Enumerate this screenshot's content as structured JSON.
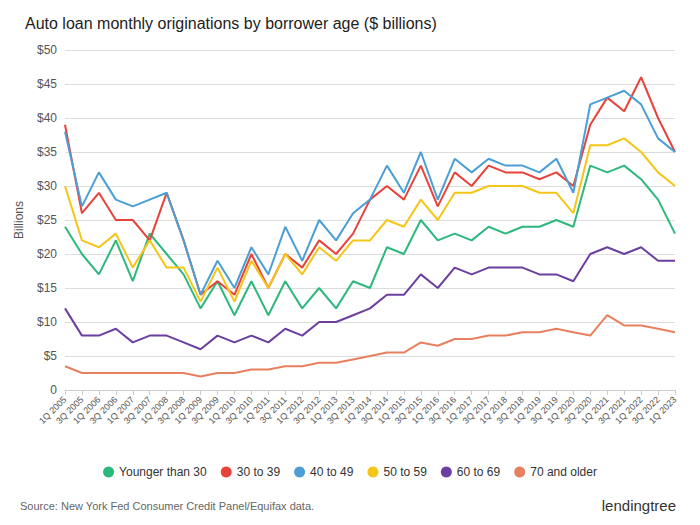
{
  "chart_data": {
    "type": "line",
    "title": "Auto loan monthly originations by borrower age ($ billions)",
    "ylabel": "Billions",
    "annotations": [
      "Source: New York Fed Consumer Credit Panel/Equifax data.",
      "lendingtree"
    ],
    "categories": [
      "1Q 2005",
      "3Q 2005",
      "1Q 2006",
      "3Q 2006",
      "1Q 2007",
      "3Q 2007",
      "1Q 2008",
      "3Q 2008",
      "1Q 2009",
      "3Q 2009",
      "1Q 2010",
      "3Q 2010",
      "1Q 2011",
      "3Q 2011",
      "1Q 2012",
      "3Q 2012",
      "1Q 2013",
      "3Q 2013",
      "1Q 2014",
      "3Q 2014",
      "1Q 2015",
      "3Q 2015",
      "1Q 2016",
      "3Q 2016",
      "1Q 2017",
      "3Q 2017",
      "1Q 2018",
      "3Q 2018",
      "1Q 2019",
      "3Q 2019",
      "1Q 2020",
      "3Q 2020",
      "1Q 2021",
      "3Q 2021",
      "1Q 2022",
      "3Q 2022",
      "1Q 2023"
    ],
    "series": [
      {
        "name": "Younger than 30",
        "color": "#2db87d",
        "values": [
          24,
          20,
          17,
          22,
          16,
          23,
          20,
          17,
          12,
          16,
          11,
          16,
          11,
          16,
          12,
          15,
          12,
          16,
          15,
          21,
          20,
          25,
          22,
          23,
          22,
          24,
          23,
          24,
          24,
          25,
          24,
          33,
          32,
          33,
          31,
          28,
          23
        ]
      },
      {
        "name": "30 to 39",
        "color": "#e8433a",
        "values": [
          39,
          26,
          29,
          25,
          25,
          22,
          29,
          22,
          14,
          16,
          14,
          20,
          15,
          20,
          18,
          22,
          20,
          23,
          28,
          30,
          28,
          33,
          27,
          32,
          30,
          33,
          32,
          32,
          31,
          32,
          30,
          39,
          43,
          41,
          46,
          40,
          35
        ]
      },
      {
        "name": "40 to 49",
        "color": "#4b9fd4",
        "values": [
          38,
          27,
          32,
          28,
          27,
          28,
          29,
          22,
          14,
          19,
          15,
          21,
          17,
          24,
          19,
          25,
          22,
          26,
          28,
          33,
          29,
          35,
          28,
          34,
          32,
          34,
          33,
          33,
          32,
          34,
          29,
          42,
          43,
          44,
          42,
          37,
          35
        ]
      },
      {
        "name": "50 to 59",
        "color": "#f5c518",
        "values": [
          30,
          22,
          21,
          23,
          18,
          22,
          18,
          18,
          13,
          18,
          13,
          19,
          15,
          20,
          17,
          21,
          19,
          22,
          22,
          25,
          24,
          28,
          25,
          29,
          29,
          30,
          30,
          30,
          29,
          29,
          26,
          36,
          36,
          37,
          35,
          32,
          30
        ]
      },
      {
        "name": "60 to 69",
        "color": "#6b3fa0",
        "values": [
          12,
          8,
          8,
          9,
          7,
          8,
          8,
          7,
          6,
          8,
          7,
          8,
          7,
          9,
          8,
          10,
          10,
          11,
          12,
          14,
          14,
          17,
          15,
          18,
          17,
          18,
          18,
          18,
          17,
          17,
          16,
          20,
          21,
          20,
          21,
          19,
          19
        ]
      },
      {
        "name": "70 and older",
        "color": "#e88060",
        "values": [
          3.5,
          2.5,
          2.5,
          2.5,
          2.5,
          2.5,
          2.5,
          2.5,
          2.0,
          2.5,
          2.5,
          3.0,
          3.0,
          3.5,
          3.5,
          4.0,
          4.0,
          4.5,
          5.0,
          5.5,
          5.5,
          7.0,
          6.5,
          7.5,
          7.5,
          8.0,
          8.0,
          8.5,
          8.5,
          9.0,
          8.5,
          8.0,
          11.0,
          9.5,
          9.5,
          9.0,
          8.5
        ]
      }
    ],
    "ylim": [
      0,
      50
    ],
    "yticks": [
      0,
      {
        "value": 5,
        "label": "$5"
      },
      {
        "value": 10,
        "label": "$10"
      },
      {
        "value": 15,
        "label": "$15"
      },
      {
        "value": 20,
        "label": "$20"
      },
      {
        "value": 25,
        "label": "$25"
      },
      {
        "value": 30,
        "label": "$30"
      },
      {
        "value": 35,
        "label": "$35"
      },
      {
        "value": 40,
        "label": "$40"
      },
      {
        "value": 45,
        "label": "$45"
      },
      {
        "value": 50,
        "label": "$50"
      }
    ],
    "grid": true,
    "legend": "bottom"
  }
}
